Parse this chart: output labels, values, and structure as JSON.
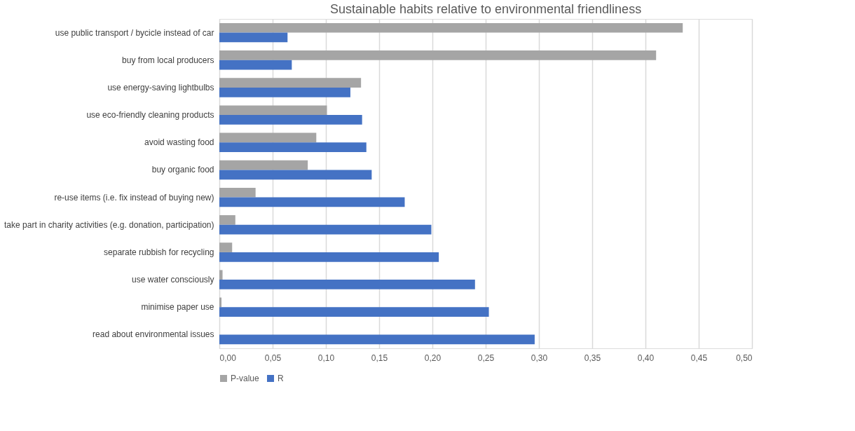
{
  "chart_data": {
    "type": "bar",
    "orientation": "horizontal",
    "title": "Sustainable habits relative to environmental friendliness",
    "categories": [
      "use public transport / bycicle instead of car",
      "buy from local producers",
      "use energy-saving lightbulbs",
      "use eco-friendly cleaning products",
      "avoid wasting food",
      "buy organic food",
      "re-use items (i.e. fix instead of buying new)",
      "take part in charity activities (e.g. donation, participation)",
      "separate rubbish for recycling",
      "use water consciously",
      "minimise paper use",
      "read about environmental issues"
    ],
    "series": [
      {
        "name": "P-value",
        "color": "#a5a5a5",
        "values": [
          0.435,
          0.41,
          0.133,
          0.101,
          0.091,
          0.083,
          0.034,
          0.015,
          0.012,
          0.003,
          0.002,
          0
        ]
      },
      {
        "name": "R",
        "color": "#4472c4",
        "values": [
          0.064,
          0.068,
          0.123,
          0.134,
          0.138,
          0.143,
          0.174,
          0.199,
          0.206,
          0.24,
          0.253,
          0.296
        ]
      }
    ],
    "xlim": [
      0,
      0.5
    ],
    "xticks": [
      {
        "value": 0,
        "label": "0,00"
      },
      {
        "value": 0.05,
        "label": "0,05"
      },
      {
        "value": 0.1,
        "label": "0,10"
      },
      {
        "value": 0.15,
        "label": "0,15"
      },
      {
        "value": 0.2,
        "label": "0,20"
      },
      {
        "value": 0.25,
        "label": "0,25"
      },
      {
        "value": 0.3,
        "label": "0,30"
      },
      {
        "value": 0.35,
        "label": "0,35"
      },
      {
        "value": 0.4,
        "label": "0,40"
      },
      {
        "value": 0.45,
        "label": "0,45"
      },
      {
        "value": 0.5,
        "label": "0,50"
      }
    ],
    "grid": "x",
    "legend": "bottom"
  }
}
